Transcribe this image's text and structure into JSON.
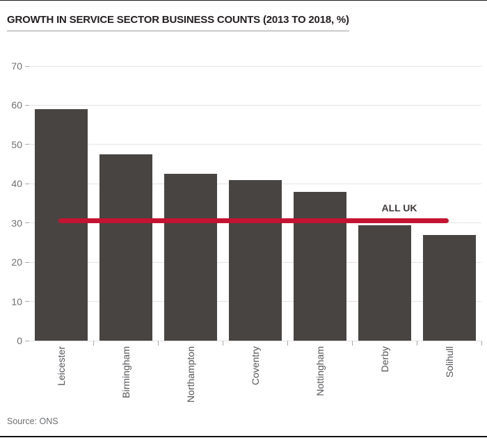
{
  "header": {
    "title": "GROWTH IN SERVICE SECTOR BUSINESS COUNTS (2013 TO 2018, %)"
  },
  "source": {
    "label": "Source: ONS"
  },
  "chart_data": {
    "type": "bar",
    "title": "GROWTH IN SERVICE SECTOR BUSINESS COUNTS (2013 TO 2018, %)",
    "categories": [
      "Leicester",
      "Birmingham",
      "Northampton",
      "Coventry",
      "Nottingham",
      "Derby",
      "Solihull"
    ],
    "values": [
      59,
      47.5,
      42.5,
      41,
      38,
      29.5,
      27
    ],
    "reference_line": {
      "label": "ALL UK",
      "value": 30.5
    },
    "xlabel": "",
    "ylabel": "",
    "ylim": [
      0,
      70
    ],
    "yticks": [
      0,
      10,
      20,
      30,
      40,
      50,
      60,
      70
    ],
    "grid": true,
    "legend": "none",
    "source": "Source: ONS",
    "colors": {
      "bar": "#484442",
      "reference_line": "#c41432",
      "grid": "#e3e3e3",
      "tick_mark": "#a8a8a8",
      "ytick_label": "#6d6e71",
      "xcat_label": "#55565a",
      "title": "#242021"
    }
  }
}
